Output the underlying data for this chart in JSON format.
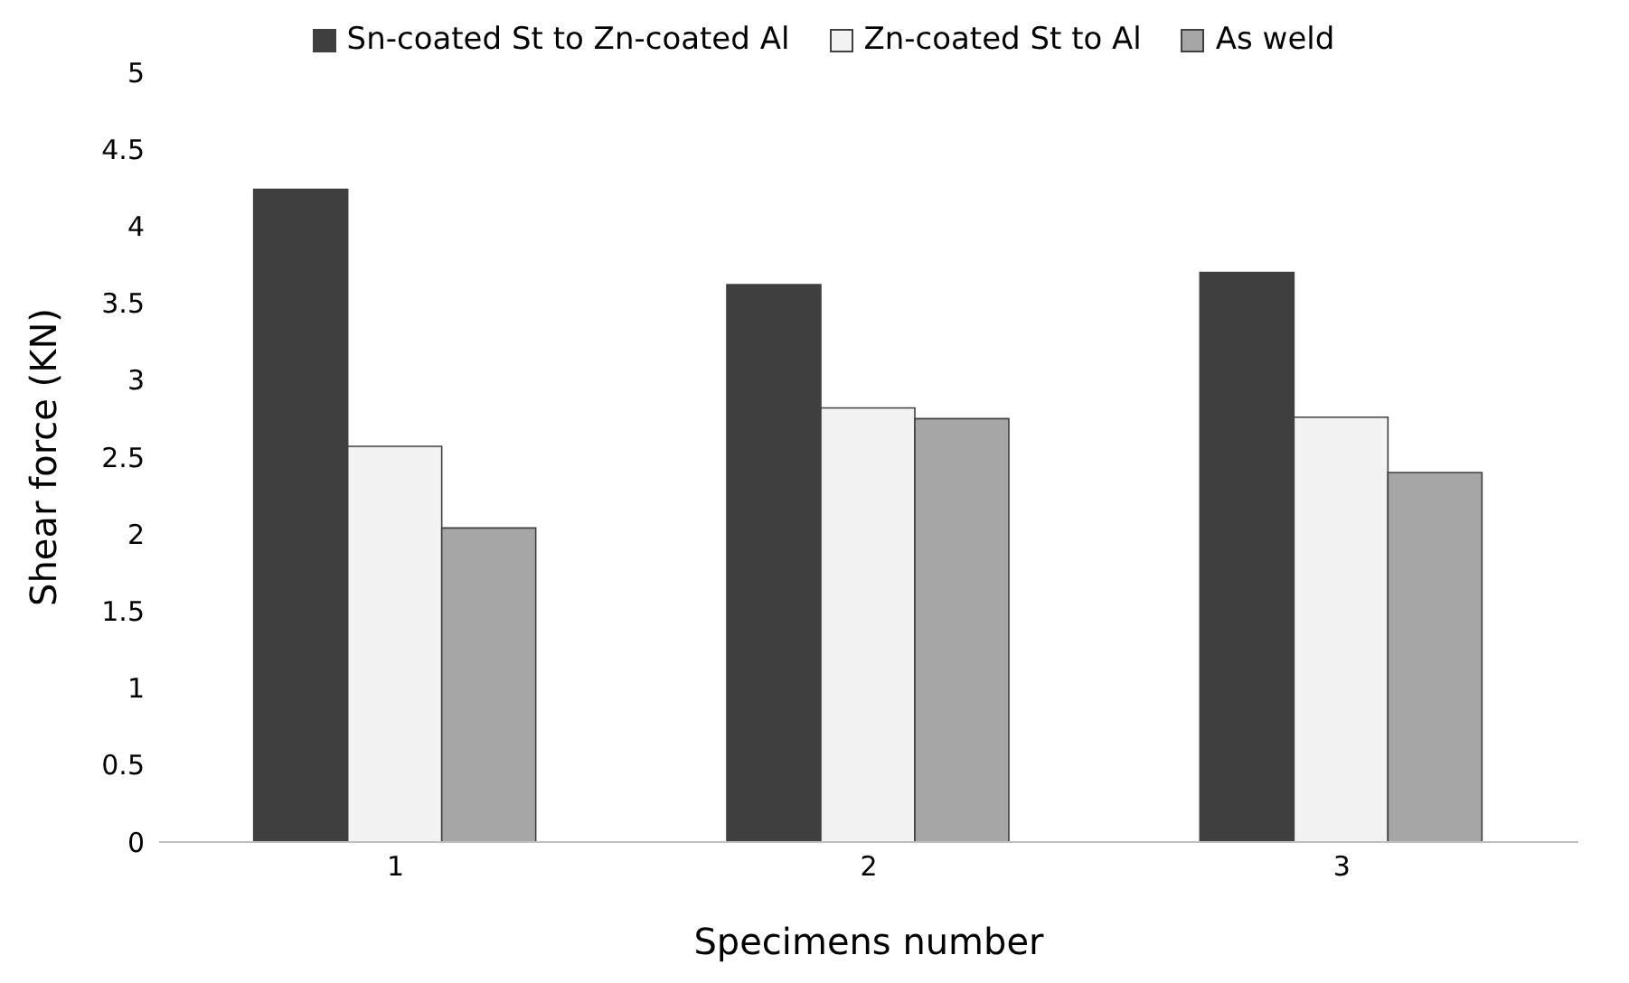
{
  "chart_data": {
    "type": "bar",
    "xlabel": "Specimens number",
    "ylabel": "Shear force (KN)",
    "categories": [
      "1",
      "2",
      "3"
    ],
    "series": [
      {
        "name": "Sn-coated St to Zn-coated Al",
        "color": "#3f3f3f",
        "values": [
          4.24,
          3.62,
          3.7
        ]
      },
      {
        "name": "Zn-coated St to Al",
        "color": "#f2f2f2",
        "values": [
          2.57,
          2.82,
          2.76
        ]
      },
      {
        "name": "As weld",
        "color": "#a6a6a6",
        "values": [
          2.04,
          2.75,
          2.4
        ]
      }
    ],
    "ylim": [
      0,
      5
    ],
    "yticks": [
      0,
      0.5,
      1,
      1.5,
      2,
      2.5,
      3,
      3.5,
      4,
      4.5,
      5
    ],
    "grid": false,
    "legend": "top"
  }
}
